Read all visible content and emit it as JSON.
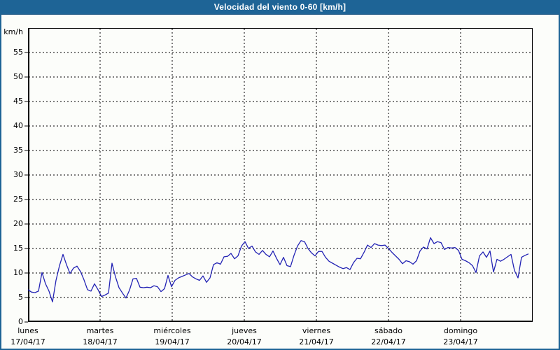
{
  "title_bar": {
    "title": "Velocidad del viento 0-60 [km/h]"
  },
  "y_axis": {
    "unit_label": "km/h",
    "tick_values": [
      0,
      5,
      10,
      15,
      20,
      25,
      30,
      35,
      40,
      45,
      50,
      55
    ],
    "min": 0,
    "max": 60
  },
  "x_axis": {
    "days": [
      {
        "name": "lunes",
        "date": "17/04/17"
      },
      {
        "name": "martes",
        "date": "18/04/17"
      },
      {
        "name": "miércoles",
        "date": "19/04/17"
      },
      {
        "name": "jueves",
        "date": "20/04/17"
      },
      {
        "name": "viernes",
        "date": "21/04/17"
      },
      {
        "name": "sábado",
        "date": "22/04/17"
      },
      {
        "name": "domingo",
        "date": "23/04/17"
      }
    ]
  },
  "colors": {
    "frame_blue": "#1e6496",
    "line_blue": "#2323b4",
    "grid_black": "#000000",
    "page_bg": "#fcfdfa"
  },
  "chart_data": {
    "type": "line",
    "title": "Velocidad del viento 0-60 [km/h]",
    "ylabel": "km/h",
    "ylim": [
      0,
      60
    ],
    "grid": true,
    "legend": "none",
    "x_start_day": 0,
    "x_end_day": 6.94,
    "x_categories": [
      "lunes 17/04/17",
      "martes 18/04/17",
      "miércoles 19/04/17",
      "jueves 20/04/17",
      "viernes 21/04/17",
      "sábado 22/04/17",
      "domingo 23/04/17"
    ],
    "sampling_note": "uniform samples (~70 min apart) from start of lunes to end of domingo, km/h",
    "values": [
      6.6,
      6.1,
      6.0,
      6.3,
      10.1,
      7.8,
      6.3,
      4.1,
      8.5,
      11.5,
      13.8,
      11.7,
      9.9,
      11.0,
      11.4,
      10.3,
      8.6,
      6.6,
      6.3,
      7.8,
      6.6,
      5.2,
      5.5,
      5.9,
      12.0,
      9.2,
      7.0,
      5.9,
      4.9,
      6.5,
      8.8,
      8.9,
      7.1,
      7.0,
      7.1,
      7.0,
      7.4,
      7.2,
      6.2,
      6.8,
      9.5,
      7.2,
      8.5,
      9.0,
      9.3,
      9.6,
      9.9,
      9.2,
      8.8,
      8.5,
      9.4,
      8.1,
      9.0,
      11.7,
      12.1,
      11.8,
      13.3,
      13.4,
      14.0,
      12.9,
      13.5,
      15.5,
      16.4,
      15.0,
      15.5,
      14.3,
      13.8,
      14.6,
      13.8,
      13.3,
      14.5,
      13.0,
      11.7,
      13.2,
      11.5,
      11.3,
      13.6,
      15.5,
      16.6,
      16.4,
      15.0,
      14.1,
      13.5,
      14.4,
      14.4,
      13.2,
      12.4,
      12.0,
      11.6,
      11.2,
      10.9,
      11.1,
      10.7,
      12.1,
      13.0,
      12.9,
      14.2,
      15.7,
      15.2,
      16.0,
      15.7,
      15.6,
      15.7,
      15.0,
      14.2,
      13.5,
      12.8,
      11.9,
      12.5,
      12.3,
      11.8,
      12.5,
      14.5,
      15.3,
      14.9,
      17.2,
      16.0,
      16.4,
      16.2,
      14.8,
      15.2,
      15.1,
      15.2,
      14.6,
      12.8,
      12.5,
      12.1,
      11.5,
      10.1,
      13.5,
      14.3,
      13.2,
      14.5,
      10.2,
      12.8,
      12.4,
      12.8,
      13.3,
      13.8,
      10.5,
      9.0,
      13.2,
      13.6,
      13.9
    ]
  }
}
